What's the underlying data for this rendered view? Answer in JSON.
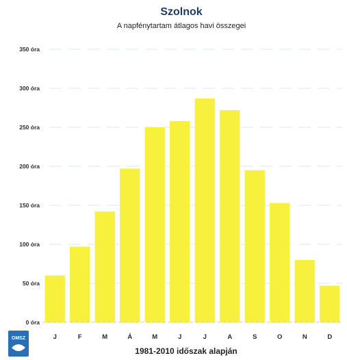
{
  "chart_data": {
    "type": "bar",
    "title": "Szolnok",
    "subtitle": "A napfénytartam átlagos havi összegei",
    "caption": "1981-2010 időszak alapján",
    "categories": [
      "J",
      "F",
      "M",
      "Á",
      "M",
      "J",
      "J",
      "A",
      "S",
      "O",
      "N",
      "D"
    ],
    "values": [
      60,
      97,
      142,
      197,
      250,
      258,
      287,
      272,
      195,
      153,
      80,
      47
    ],
    "ylim": [
      0,
      350
    ],
    "yticks": [
      {
        "value": 0,
        "label": "0 óra"
      },
      {
        "value": 50,
        "label": "50 óra"
      },
      {
        "value": 100,
        "label": "100 óra"
      },
      {
        "value": 150,
        "label": "150 óra"
      },
      {
        "value": 200,
        "label": "200 óra"
      },
      {
        "value": 250,
        "label": "250 óra"
      },
      {
        "value": 300,
        "label": "300 óra"
      },
      {
        "value": 350,
        "label": "350 óra"
      }
    ],
    "grid": true,
    "bar_color": "#f7f03c"
  },
  "logo": {
    "text": "OMSZ"
  }
}
